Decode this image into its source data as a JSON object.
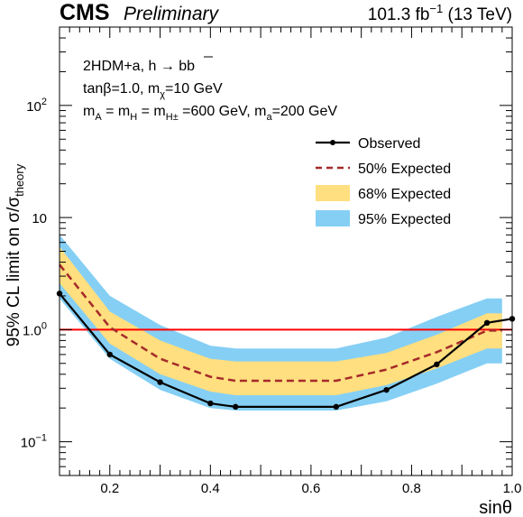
{
  "header": {
    "experiment": "CMS",
    "status": "Preliminary",
    "luminosity_value": "101.3 fb",
    "luminosity_exp": "−1",
    "energy": " (13 TeV)"
  },
  "chart_data": {
    "type": "line",
    "xlabel": "sinθ",
    "ylabel_main": "95% CL limit on σ/σ",
    "ylabel_sub": "theory",
    "yscale": "log",
    "xlim": [
      0.1,
      1.0
    ],
    "ylim": [
      0.05,
      500
    ],
    "x_ticks": [
      "0.2",
      "0.4",
      "0.6",
      "0.8",
      "1.0"
    ],
    "y_ticks": [
      {
        "base": "10",
        "exp": "2"
      },
      {
        "base": "10",
        "exp": ""
      },
      {
        "base": "1.0",
        "exp": "0"
      },
      {
        "base": "10",
        "exp": "−1"
      }
    ],
    "reference_line": {
      "y": 1.0,
      "color": "#ff0000"
    },
    "annotations": [
      "2HDM+a, h → bb̄",
      "tanβ=1.0, mχ=10 GeV",
      "mA = mH = mH± =600 GeV, ma=200 GeV"
    ],
    "annotation_parts": {
      "line1": "2HDM+a, h → bb",
      "line2_a": "tanβ=1.0, m",
      "line2_sub": "χ",
      "line2_b": "=10 GeV",
      "line3_a": "m",
      "line3_sub1": "A",
      "line3_b": " = m",
      "line3_sub2": "H",
      "line3_c": " = m",
      "line3_sub3": "H±",
      "line3_d": " =600 GeV, m",
      "line3_sub4": "a",
      "line3_e": "=200 GeV"
    },
    "x": [
      0.1,
      0.2,
      0.3,
      0.4,
      0.45,
      0.65,
      0.75,
      0.85,
      0.95,
      1.0
    ],
    "observed": [
      2.1,
      0.6,
      0.34,
      0.22,
      0.205,
      0.205,
      0.29,
      0.49,
      1.15,
      1.25
    ],
    "expected_x": [
      0.1,
      0.2,
      0.3,
      0.4,
      0.45,
      0.65,
      0.75,
      0.85,
      0.95,
      0.98
    ],
    "expected": [
      3.8,
      1.05,
      0.55,
      0.38,
      0.35,
      0.35,
      0.44,
      0.63,
      0.98,
      0.98
    ],
    "band68_lower": [
      2.6,
      0.75,
      0.4,
      0.28,
      0.26,
      0.26,
      0.32,
      0.45,
      0.68,
      0.68
    ],
    "band68_upper": [
      5.5,
      1.45,
      0.8,
      0.55,
      0.52,
      0.52,
      0.62,
      0.9,
      1.4,
      1.4
    ],
    "band95_lower": [
      1.9,
      0.55,
      0.29,
      0.2,
      0.19,
      0.19,
      0.23,
      0.33,
      0.5,
      0.5
    ],
    "band95_upper": [
      7.0,
      2.0,
      1.1,
      0.72,
      0.68,
      0.68,
      0.85,
      1.3,
      1.9,
      1.9
    ],
    "legend": [
      {
        "label": "Observed",
        "kind": "line-marker",
        "color": "#000000"
      },
      {
        "label": "50% Expected",
        "kind": "dashed",
        "color": "#a52a2a"
      },
      {
        "label": "68% Expected",
        "kind": "box",
        "color": "#ffdf7f"
      },
      {
        "label": "95% Expected",
        "kind": "box",
        "color": "#85cff5"
      }
    ],
    "legend_position": "top-right",
    "colors": {
      "observed": "#000000",
      "expected": "#a52a2a",
      "band68": "#ffdf7f",
      "band95": "#85cff5",
      "reference": "#ff0000"
    }
  }
}
